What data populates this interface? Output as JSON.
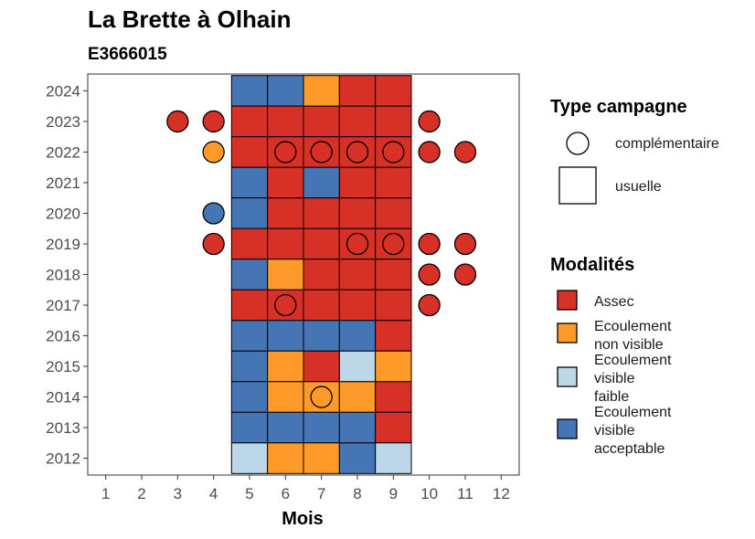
{
  "chart_data": {
    "type": "heatmap",
    "title": "La Brette à Olhain",
    "subtitle": "E3666015",
    "xlabel": "Mois",
    "ylabel": "",
    "x_ticks": [
      1,
      2,
      3,
      4,
      5,
      6,
      7,
      8,
      9,
      10,
      11,
      12
    ],
    "y_ticks": [
      2012,
      2013,
      2014,
      2015,
      2016,
      2017,
      2018,
      2019,
      2020,
      2021,
      2022,
      2023,
      2024
    ],
    "xlim": [
      0.5,
      12.5
    ],
    "ylim": [
      2011.45,
      2024.55
    ],
    "grid": false,
    "legend_position": "right",
    "legend_campagne": {
      "title": "Type campagne",
      "entries": [
        {
          "label": "complémentaire",
          "shape": "circle"
        },
        {
          "label": "usuelle",
          "shape": "square"
        }
      ]
    },
    "legend_modalites": {
      "title": "Modalités",
      "entries": [
        {
          "key": "A",
          "label_lines": [
            "Assec"
          ],
          "color": "#d73027"
        },
        {
          "key": "N",
          "label_lines": [
            "Ecoulement",
            "non visible"
          ],
          "color": "#fd9a2a"
        },
        {
          "key": "F",
          "label_lines": [
            "Ecoulement",
            "visible",
            "faible"
          ],
          "color": "#bcd7e8"
        },
        {
          "key": "V",
          "label_lines": [
            "Ecoulement",
            "visible",
            "acceptable"
          ],
          "color": "#4575b4"
        }
      ]
    },
    "usuelle": [
      {
        "year": 2024,
        "values": {
          "5": "V",
          "6": "V",
          "7": "N",
          "8": "A",
          "9": "A"
        }
      },
      {
        "year": 2023,
        "values": {
          "5": "A",
          "6": "A",
          "7": "A",
          "8": "A",
          "9": "A"
        }
      },
      {
        "year": 2022,
        "values": {
          "5": "A",
          "6": "A",
          "7": "A",
          "8": "A",
          "9": "A"
        }
      },
      {
        "year": 2021,
        "values": {
          "5": "V",
          "6": "A",
          "7": "V",
          "8": "A",
          "9": "A"
        }
      },
      {
        "year": 2020,
        "values": {
          "5": "V",
          "6": "A",
          "7": "A",
          "8": "A",
          "9": "A"
        }
      },
      {
        "year": 2019,
        "values": {
          "5": "A",
          "6": "A",
          "7": "A",
          "8": "A",
          "9": "A"
        }
      },
      {
        "year": 2018,
        "values": {
          "5": "V",
          "6": "N",
          "7": "A",
          "8": "A",
          "9": "A"
        }
      },
      {
        "year": 2017,
        "values": {
          "5": "A",
          "6": "A",
          "7": "A",
          "8": "A",
          "9": "A"
        }
      },
      {
        "year": 2016,
        "values": {
          "5": "V",
          "6": "V",
          "7": "V",
          "8": "V",
          "9": "A"
        }
      },
      {
        "year": 2015,
        "values": {
          "5": "V",
          "6": "N",
          "7": "A",
          "8": "F",
          "9": "N"
        }
      },
      {
        "year": 2014,
        "values": {
          "5": "V",
          "6": "N",
          "7": "N",
          "8": "N",
          "9": "A"
        }
      },
      {
        "year": 2013,
        "values": {
          "5": "V",
          "6": "V",
          "7": "V",
          "8": "V",
          "9": "A"
        }
      },
      {
        "year": 2012,
        "values": {
          "5": "F",
          "6": "N",
          "7": "N",
          "8": "V",
          "9": "F"
        }
      }
    ],
    "complementaire": [
      {
        "year": 2023,
        "month": 3,
        "value": "A"
      },
      {
        "year": 2023,
        "month": 4,
        "value": "A"
      },
      {
        "year": 2023,
        "month": 10,
        "value": "A"
      },
      {
        "year": 2022,
        "month": 4,
        "value": "N"
      },
      {
        "year": 2022,
        "month": 6,
        "value": "A"
      },
      {
        "year": 2022,
        "month": 7,
        "value": "A"
      },
      {
        "year": 2022,
        "month": 8,
        "value": "A"
      },
      {
        "year": 2022,
        "month": 9,
        "value": "A"
      },
      {
        "year": 2022,
        "month": 10,
        "value": "A"
      },
      {
        "year": 2022,
        "month": 11,
        "value": "A"
      },
      {
        "year": 2020,
        "month": 4,
        "value": "V"
      },
      {
        "year": 2019,
        "month": 4,
        "value": "A"
      },
      {
        "year": 2019,
        "month": 8,
        "value": "A"
      },
      {
        "year": 2019,
        "month": 9,
        "value": "A"
      },
      {
        "year": 2019,
        "month": 10,
        "value": "A"
      },
      {
        "year": 2019,
        "month": 11,
        "value": "A"
      },
      {
        "year": 2018,
        "month": 10,
        "value": "A"
      },
      {
        "year": 2018,
        "month": 11,
        "value": "A"
      },
      {
        "year": 2017,
        "month": 6,
        "value": "A"
      },
      {
        "year": 2017,
        "month": 10,
        "value": "A"
      },
      {
        "year": 2014,
        "month": 7,
        "value": "N"
      }
    ]
  }
}
